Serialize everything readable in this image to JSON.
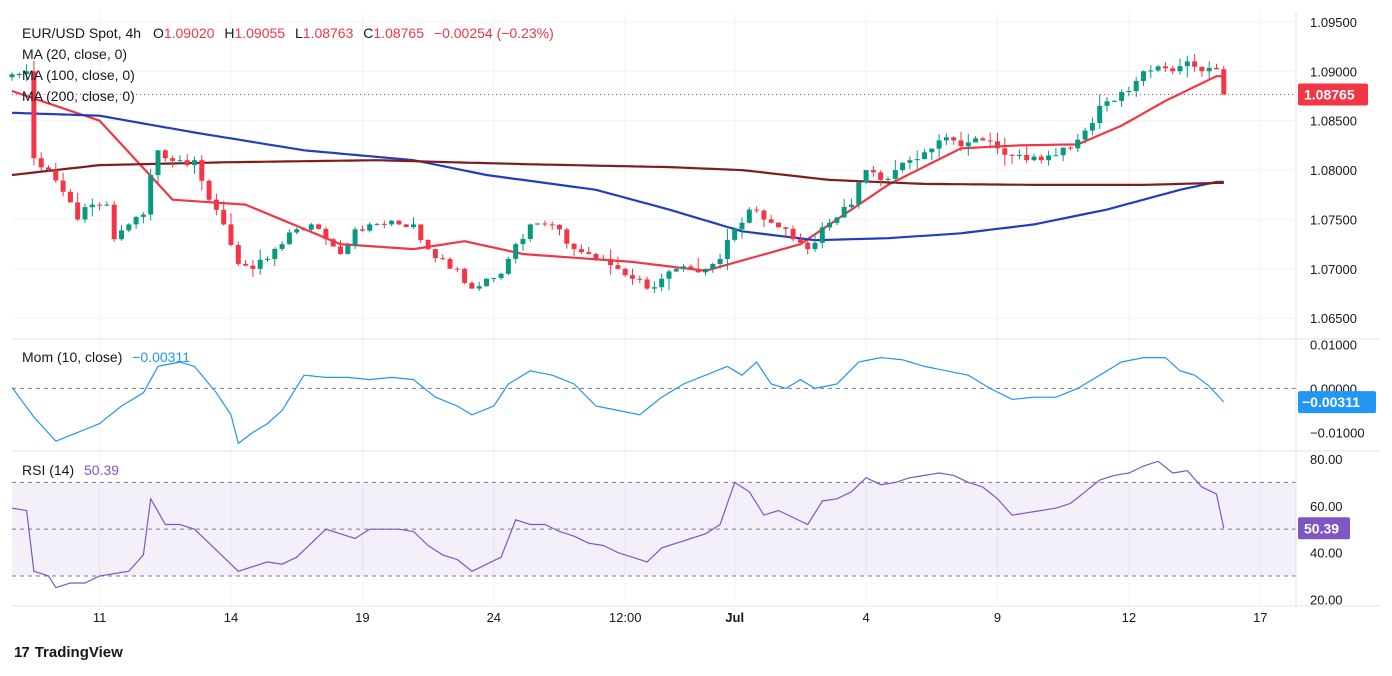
{
  "chart_data": [
    {
      "type": "candlestick",
      "title": "EUR/USD Spot, 4h",
      "symbol": "EUR/USD Spot",
      "timeframe": "4h",
      "ohlc_header": {
        "o_label": "O",
        "open": "1.09020",
        "h_label": "H",
        "high": "1.09055",
        "l_label": "L",
        "low": "1.08763",
        "c_label": "C",
        "close": "1.08765",
        "change": "−0.00254 (−0.23%)"
      },
      "ylim": [
        1.063,
        1.096
      ],
      "y_ticks": [
        "1.09500",
        "1.09000",
        "1.08500",
        "1.08000",
        "1.07500",
        "1.07000",
        "1.06500"
      ],
      "last_price": "1.08765",
      "x_ticks": [
        {
          "label": "11",
          "bar": 12
        },
        {
          "label": "14",
          "bar": 30
        },
        {
          "label": "19",
          "bar": 48
        },
        {
          "label": "24",
          "bar": 66
        },
        {
          "label": "12:00",
          "bar": 84
        },
        {
          "label": "Jul",
          "bar": 99
        },
        {
          "label": "4",
          "bar": 117
        },
        {
          "label": "9",
          "bar": 135
        },
        {
          "label": "12",
          "bar": 153
        },
        {
          "label": "17",
          "bar": 171
        }
      ],
      "moving_averages": [
        {
          "name": "MA (20, close, 0)",
          "color": "#f23645",
          "anchors": [
            [
              0,
              1.088
            ],
            [
              12,
              1.085
            ],
            [
              22,
              1.077
            ],
            [
              32,
              1.0765
            ],
            [
              45,
              1.0725
            ],
            [
              55,
              1.072
            ],
            [
              62,
              1.0728
            ],
            [
              70,
              1.0715
            ],
            [
              85,
              1.0707
            ],
            [
              95,
              1.0698
            ],
            [
              108,
              1.0725
            ],
            [
              120,
              1.0785
            ],
            [
              130,
              1.0822
            ],
            [
              138,
              1.0825
            ],
            [
              146,
              1.0826
            ],
            [
              152,
              1.0845
            ],
            [
              158,
              1.087
            ],
            [
              165,
              1.0895
            ]
          ]
        },
        {
          "name": "MA (100, close, 0)",
          "color": "#1f3fbf",
          "anchors": [
            [
              0,
              1.0858
            ],
            [
              12,
              1.0855
            ],
            [
              25,
              1.0838
            ],
            [
              40,
              1.082
            ],
            [
              55,
              1.081
            ],
            [
              65,
              1.0795
            ],
            [
              80,
              1.078
            ],
            [
              90,
              1.076
            ],
            [
              100,
              1.0738
            ],
            [
              110,
              1.0729
            ],
            [
              120,
              1.0731
            ],
            [
              130,
              1.0736
            ],
            [
              140,
              1.0745
            ],
            [
              150,
              1.076
            ],
            [
              160,
              1.078
            ],
            [
              165,
              1.0788
            ]
          ]
        },
        {
          "name": "MA (200, close, 0)",
          "color": "#7f1d1d",
          "anchors": [
            [
              0,
              1.0795
            ],
            [
              12,
              1.0805
            ],
            [
              30,
              1.0808
            ],
            [
              50,
              1.081
            ],
            [
              70,
              1.0806
            ],
            [
              90,
              1.0803
            ],
            [
              100,
              1.08
            ],
            [
              112,
              1.079
            ],
            [
              125,
              1.0786
            ],
            [
              140,
              1.0785
            ],
            [
              155,
              1.0785
            ],
            [
              165,
              1.0787
            ]
          ]
        }
      ],
      "close_anchors": [
        [
          0,
          1.0897
        ],
        [
          2,
          1.09
        ],
        [
          3,
          1.0812
        ],
        [
          5,
          1.08
        ],
        [
          7,
          1.0778
        ],
        [
          9,
          1.075
        ],
        [
          11,
          1.0765
        ],
        [
          13,
          1.0765
        ],
        [
          14,
          1.073
        ],
        [
          16,
          1.0745
        ],
        [
          18,
          1.0755
        ],
        [
          19,
          1.0795
        ],
        [
          20,
          1.082
        ],
        [
          21,
          1.0812
        ],
        [
          23,
          1.081
        ],
        [
          25,
          1.081
        ],
        [
          27,
          1.077
        ],
        [
          29,
          1.0745
        ],
        [
          31,
          1.0705
        ],
        [
          33,
          1.07
        ],
        [
          35,
          1.071
        ],
        [
          37,
          1.0725
        ],
        [
          39,
          1.074
        ],
        [
          41,
          1.0745
        ],
        [
          43,
          1.073
        ],
        [
          45,
          1.0715
        ],
        [
          47,
          1.074
        ],
        [
          49,
          1.0745
        ],
        [
          51,
          1.0745
        ],
        [
          53,
          1.0745
        ],
        [
          55,
          1.0745
        ],
        [
          57,
          1.072
        ],
        [
          59,
          1.071
        ],
        [
          61,
          1.07
        ],
        [
          63,
          1.068
        ],
        [
          65,
          1.069
        ],
        [
          67,
          1.0695
        ],
        [
          69,
          1.0725
        ],
        [
          71,
          1.0745
        ],
        [
          73,
          1.0745
        ],
        [
          75,
          1.074
        ],
        [
          77,
          1.072
        ],
        [
          79,
          1.0715
        ],
        [
          81,
          1.071
        ],
        [
          83,
          1.07
        ],
        [
          85,
          1.069
        ],
        [
          87,
          1.068
        ],
        [
          89,
          1.069
        ],
        [
          91,
          1.07
        ],
        [
          93,
          1.07
        ],
        [
          95,
          1.07
        ],
        [
          97,
          1.071
        ],
        [
          99,
          1.074
        ],
        [
          101,
          1.076
        ],
        [
          103,
          1.075
        ],
        [
          105,
          1.0742
        ],
        [
          107,
          1.073
        ],
        [
          109,
          1.072
        ],
        [
          111,
          1.0742
        ],
        [
          113,
          1.0752
        ],
        [
          115,
          1.0765
        ],
        [
          117,
          1.08
        ],
        [
          119,
          1.079
        ],
        [
          121,
          1.08
        ],
        [
          123,
          1.081
        ],
        [
          125,
          1.0818
        ],
        [
          127,
          1.083
        ],
        [
          129,
          1.083
        ],
        [
          131,
          1.0828
        ],
        [
          133,
          1.083
        ],
        [
          135,
          1.0822
        ],
        [
          137,
          1.0815
        ],
        [
          139,
          1.081
        ],
        [
          141,
          1.081
        ],
        [
          143,
          1.0815
        ],
        [
          145,
          1.0822
        ],
        [
          147,
          1.084
        ],
        [
          149,
          1.0865
        ],
        [
          151,
          1.087
        ],
        [
          153,
          1.088
        ],
        [
          155,
          1.09
        ],
        [
          157,
          1.0905
        ],
        [
          159,
          1.09
        ],
        [
          161,
          1.091
        ],
        [
          163,
          1.09
        ],
        [
          165,
          1.0902
        ],
        [
          166,
          1.08765
        ]
      ],
      "momentum": {
        "label": "Mom (10, close)",
        "value": "−0.00311",
        "y_ticks": [
          "0.01000",
          "0.00000",
          "−0.01000"
        ],
        "ylim": [
          -0.014,
          0.011
        ],
        "anchors": [
          [
            0,
            0.0002
          ],
          [
            3,
            -0.0065
          ],
          [
            6,
            -0.012
          ],
          [
            9,
            -0.01
          ],
          [
            12,
            -0.008
          ],
          [
            15,
            -0.004
          ],
          [
            18,
            -0.001
          ],
          [
            20,
            0.005
          ],
          [
            23,
            0.006
          ],
          [
            25,
            0.005
          ],
          [
            28,
            -0.001
          ],
          [
            30,
            -0.006
          ],
          [
            31,
            -0.0125
          ],
          [
            33,
            -0.01
          ],
          [
            35,
            -0.008
          ],
          [
            37,
            -0.005
          ],
          [
            40,
            0.003
          ],
          [
            43,
            0.0025
          ],
          [
            46,
            0.0025
          ],
          [
            49,
            0.002
          ],
          [
            52,
            0.0025
          ],
          [
            55,
            0.002
          ],
          [
            58,
            -0.002
          ],
          [
            61,
            -0.004
          ],
          [
            63,
            -0.006
          ],
          [
            66,
            -0.004
          ],
          [
            68,
            0.001
          ],
          [
            71,
            0.004
          ],
          [
            74,
            0.003
          ],
          [
            77,
            0.001
          ],
          [
            80,
            -0.004
          ],
          [
            83,
            -0.005
          ],
          [
            86,
            -0.006
          ],
          [
            89,
            -0.002
          ],
          [
            92,
            0.001
          ],
          [
            95,
            0.003
          ],
          [
            98,
            0.005
          ],
          [
            100,
            0.003
          ],
          [
            102,
            0.006
          ],
          [
            104,
            0.001
          ],
          [
            106,
            0.0
          ],
          [
            108,
            0.002
          ],
          [
            110,
            0.0
          ],
          [
            113,
            0.001
          ],
          [
            116,
            0.006
          ],
          [
            119,
            0.007
          ],
          [
            122,
            0.0065
          ],
          [
            125,
            0.005
          ],
          [
            128,
            0.004
          ],
          [
            131,
            0.003
          ],
          [
            134,
            0.0
          ],
          [
            137,
            -0.0025
          ],
          [
            140,
            -0.002
          ],
          [
            143,
            -0.002
          ],
          [
            146,
            0.0
          ],
          [
            149,
            0.003
          ],
          [
            152,
            0.006
          ],
          [
            155,
            0.007
          ],
          [
            158,
            0.007
          ],
          [
            160,
            0.004
          ],
          [
            162,
            0.003
          ],
          [
            164,
            0.0005
          ],
          [
            166,
            -0.00311
          ]
        ]
      },
      "rsi": {
        "label": "RSI (14)",
        "value": "50.39",
        "y_ticks": [
          "80.00",
          "60.00",
          "40.00",
          "20.00"
        ],
        "ylim": [
          18,
          83
        ],
        "upper_band": 70,
        "lower_band": 30,
        "mid_line": 50,
        "anchors": [
          [
            0,
            59
          ],
          [
            2,
            58
          ],
          [
            3,
            32
          ],
          [
            5,
            30
          ],
          [
            6,
            25
          ],
          [
            8,
            27
          ],
          [
            10,
            27
          ],
          [
            12,
            30
          ],
          [
            14,
            31
          ],
          [
            16,
            32
          ],
          [
            18,
            39
          ],
          [
            19,
            63
          ],
          [
            21,
            52
          ],
          [
            23,
            52
          ],
          [
            25,
            50
          ],
          [
            27,
            44
          ],
          [
            29,
            38
          ],
          [
            31,
            32
          ],
          [
            33,
            34
          ],
          [
            35,
            36
          ],
          [
            37,
            35
          ],
          [
            39,
            38
          ],
          [
            41,
            44
          ],
          [
            43,
            50
          ],
          [
            45,
            48
          ],
          [
            47,
            46
          ],
          [
            49,
            50
          ],
          [
            51,
            50
          ],
          [
            53,
            50
          ],
          [
            55,
            49
          ],
          [
            57,
            43
          ],
          [
            59,
            39
          ],
          [
            61,
            37
          ],
          [
            63,
            32
          ],
          [
            65,
            35
          ],
          [
            67,
            38
          ],
          [
            69,
            54
          ],
          [
            71,
            52
          ],
          [
            73,
            52
          ],
          [
            75,
            49
          ],
          [
            77,
            47
          ],
          [
            79,
            44
          ],
          [
            81,
            43
          ],
          [
            83,
            40
          ],
          [
            85,
            38
          ],
          [
            87,
            36
          ],
          [
            89,
            42
          ],
          [
            91,
            44
          ],
          [
            93,
            46
          ],
          [
            95,
            48
          ],
          [
            97,
            52
          ],
          [
            99,
            70
          ],
          [
            101,
            66
          ],
          [
            103,
            56
          ],
          [
            105,
            58
          ],
          [
            107,
            55
          ],
          [
            109,
            52
          ],
          [
            111,
            62
          ],
          [
            113,
            63
          ],
          [
            115,
            66
          ],
          [
            117,
            72
          ],
          [
            119,
            69
          ],
          [
            121,
            70
          ],
          [
            123,
            72
          ],
          [
            125,
            73
          ],
          [
            127,
            74
          ],
          [
            129,
            73
          ],
          [
            131,
            70
          ],
          [
            133,
            68
          ],
          [
            135,
            63
          ],
          [
            137,
            56
          ],
          [
            139,
            57
          ],
          [
            141,
            58
          ],
          [
            143,
            59
          ],
          [
            145,
            61
          ],
          [
            147,
            66
          ],
          [
            149,
            71
          ],
          [
            151,
            73
          ],
          [
            153,
            74
          ],
          [
            155,
            77
          ],
          [
            157,
            79
          ],
          [
            159,
            74
          ],
          [
            161,
            75
          ],
          [
            163,
            68
          ],
          [
            165,
            65
          ],
          [
            166,
            50.39
          ]
        ]
      }
    }
  ],
  "branding": {
    "logo": "17",
    "name": "TradingView"
  }
}
